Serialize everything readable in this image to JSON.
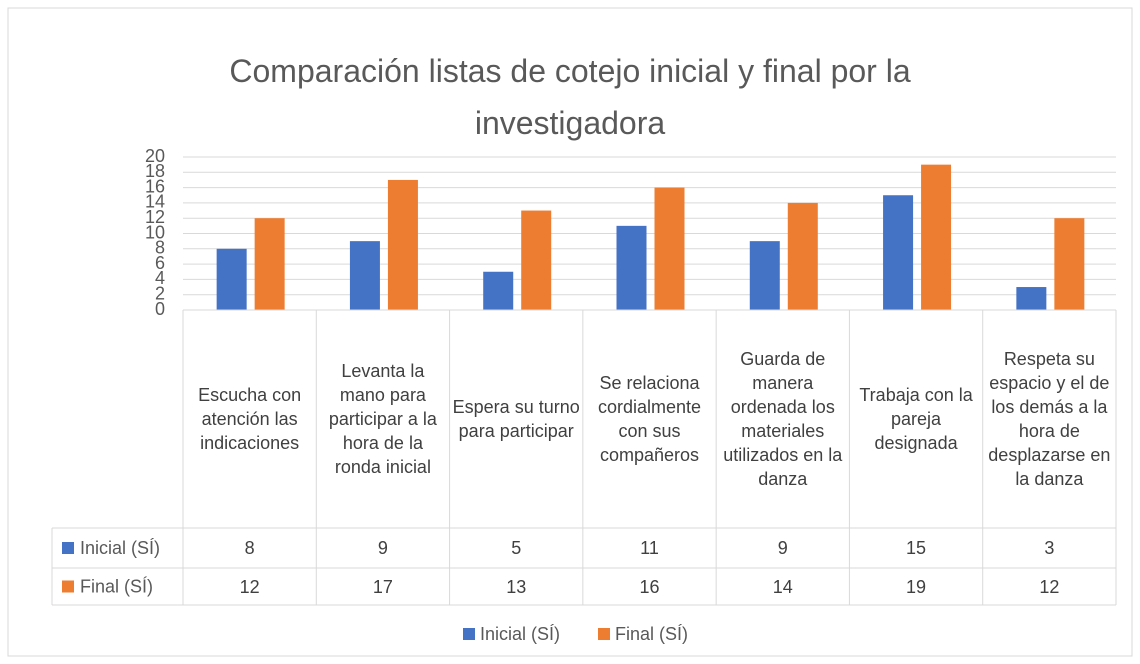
{
  "chart_data": {
    "type": "bar",
    "title": "Comparación listas de cotejo inicial y final por la investigadora",
    "categories": [
      "Escucha con atención las indicaciones",
      "Levanta la mano para participar a la hora de la ronda inicial",
      "Espera su turno para participar",
      "Se relaciona cordialmente con sus compañeros",
      "Guarda de manera ordenada los materiales utilizados en la danza",
      "Trabaja con la pareja designada",
      "Respeta su espacio y el de los demás a la hora de desplazarse en la danza"
    ],
    "series": [
      {
        "name": "Inicial (SÍ)",
        "color": "#4472c4",
        "values": [
          8,
          9,
          5,
          11,
          9,
          15,
          3
        ]
      },
      {
        "name": "Final (SÍ)",
        "color": "#ed7d31",
        "values": [
          12,
          17,
          13,
          16,
          14,
          19,
          12
        ]
      }
    ],
    "ylim": [
      0,
      20
    ],
    "yticks": [
      0,
      2,
      4,
      6,
      8,
      10,
      12,
      14,
      16,
      18,
      20
    ],
    "grid": true,
    "legend": "bottom",
    "data_table": true
  }
}
